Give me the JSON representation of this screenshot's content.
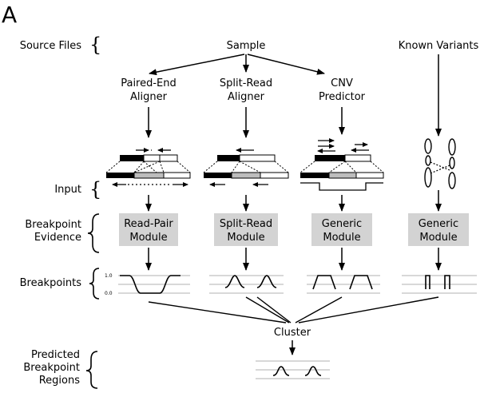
{
  "panel_label": "A",
  "row_labels": {
    "source_files": "Source Files",
    "input": "Input",
    "breakpoint_evidence": [
      "Breakpoint",
      "Evidence"
    ],
    "breakpoints": "Breakpoints",
    "predicted": [
      "Predicted",
      "Breakpoint",
      "Regions"
    ]
  },
  "sources": {
    "sample": "Sample",
    "known_variants": "Known Variants"
  },
  "tools": {
    "paired_end": [
      "Paired-End",
      "Aligner"
    ],
    "split_read": [
      "Split-Read",
      "Aligner"
    ],
    "cnv": [
      "CNV",
      "Predictor"
    ]
  },
  "modules": {
    "read_pair": [
      "Read-Pair",
      "Module"
    ],
    "split_read": [
      "Split-Read",
      "Module"
    ],
    "generic_1": [
      "Generic",
      "Module"
    ],
    "generic_2": [
      "Generic",
      "Module"
    ]
  },
  "axis_ticks": {
    "top": "1.0",
    "bottom": "0.0"
  },
  "cluster": "Cluster",
  "colors": {
    "module_fill": "#d3d3d3",
    "gridline": "#c0c0c0",
    "stroke": "#000000"
  }
}
